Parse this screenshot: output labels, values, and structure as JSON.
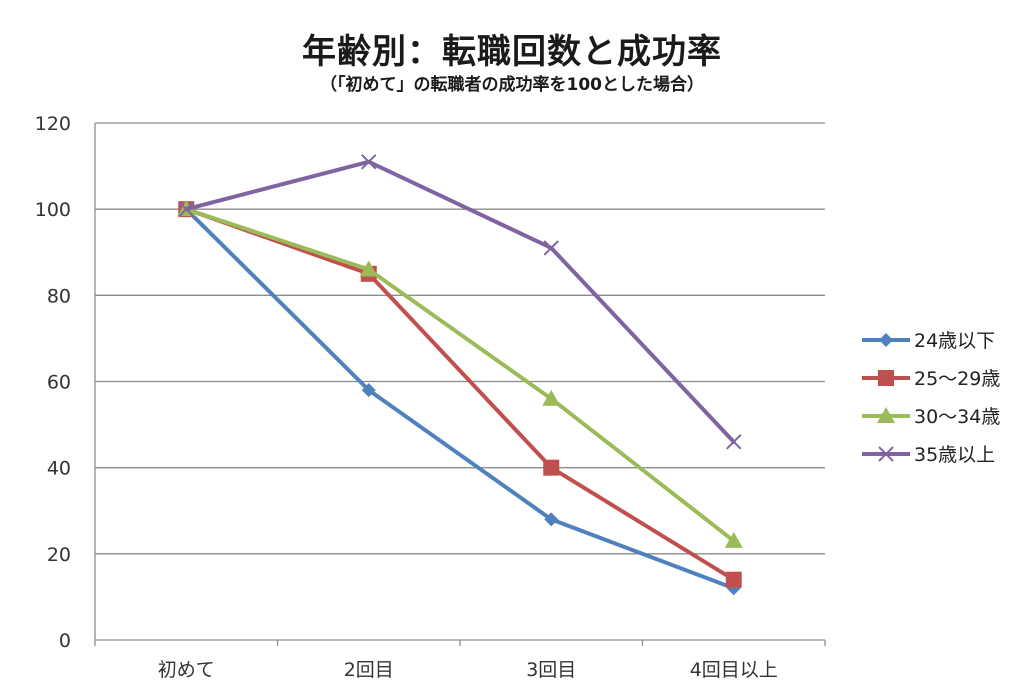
{
  "chart_data": {
    "type": "line",
    "title": "年齢別：転職回数と成功率",
    "subtitle": "（「初めて」の転職者の成功率を100とした場合）",
    "xlabel": "",
    "ylabel": "",
    "categories": [
      "初めて",
      "2回目",
      "3回目",
      "4回目以上"
    ],
    "ylim": [
      0,
      120
    ],
    "yticks": [
      0,
      20,
      40,
      60,
      80,
      100,
      120
    ],
    "grid": true,
    "legend_position": "right",
    "series": [
      {
        "name": "24歳以下",
        "color": "#4f81bd",
        "marker": "diamond",
        "values": [
          100,
          58,
          28,
          12
        ]
      },
      {
        "name": "25～29歳",
        "color": "#c0504d",
        "marker": "square",
        "values": [
          100,
          85,
          40,
          14
        ]
      },
      {
        "name": "30～34歳",
        "color": "#9bbb59",
        "marker": "triangle",
        "values": [
          100,
          86,
          56,
          23
        ]
      },
      {
        "name": "35歳以上",
        "color": "#8064a2",
        "marker": "x",
        "values": [
          100,
          111,
          91,
          46
        ]
      }
    ]
  }
}
